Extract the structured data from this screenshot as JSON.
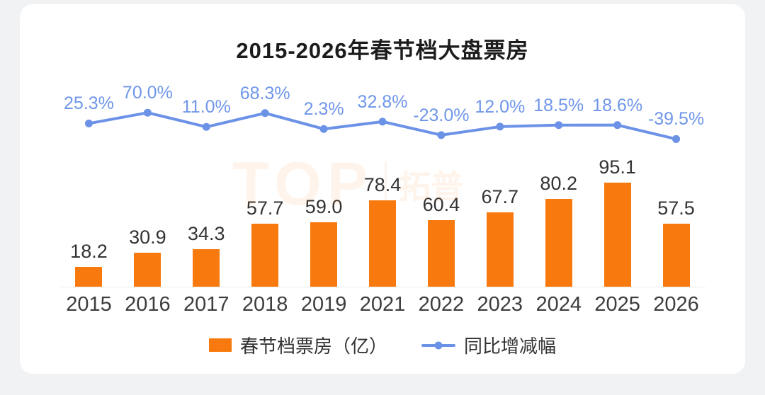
{
  "card": {
    "title": "2015-2026年春节档大盘票房"
  },
  "chart_data": {
    "type": "bar",
    "title": "2015-2026年春节档大盘票房",
    "categories": [
      "2015",
      "2016",
      "2017",
      "2018",
      "2019",
      "2021",
      "2022",
      "2023",
      "2024",
      "2025",
      "2026"
    ],
    "series": [
      {
        "name": "春节档票房（亿）",
        "type": "bar",
        "color": "#F87A0E",
        "values": [
          18.2,
          30.9,
          34.3,
          57.7,
          59.0,
          78.4,
          60.4,
          67.7,
          80.2,
          95.1,
          57.5
        ],
        "value_labels": [
          "18.2",
          "30.9",
          "34.3",
          "57.7",
          "59.0",
          "78.4",
          "60.4",
          "67.7",
          "80.2",
          "95.1",
          "57.5"
        ]
      },
      {
        "name": "同比增减幅",
        "type": "line",
        "color": "#6C92E8",
        "values_pct": [
          25.3,
          70.0,
          11.0,
          68.3,
          2.3,
          32.8,
          -23.0,
          12.0,
          18.5,
          18.6,
          -39.5
        ],
        "labels": [
          "25.3%",
          "70.0%",
          "11.0%",
          "68.3%",
          "2.3%",
          "32.8%",
          "-23.0%",
          "12.0%",
          "18.5%",
          "18.6%",
          "-39.5%"
        ]
      }
    ],
    "xlabel": "",
    "ylabel": "",
    "grid": false,
    "legend_position": "bottom"
  },
  "legend": {
    "bar_label": "春节档票房（亿）",
    "line_label": "同比增减幅"
  },
  "watermark": {
    "logo": "TOP",
    "cjk": "拓普"
  }
}
